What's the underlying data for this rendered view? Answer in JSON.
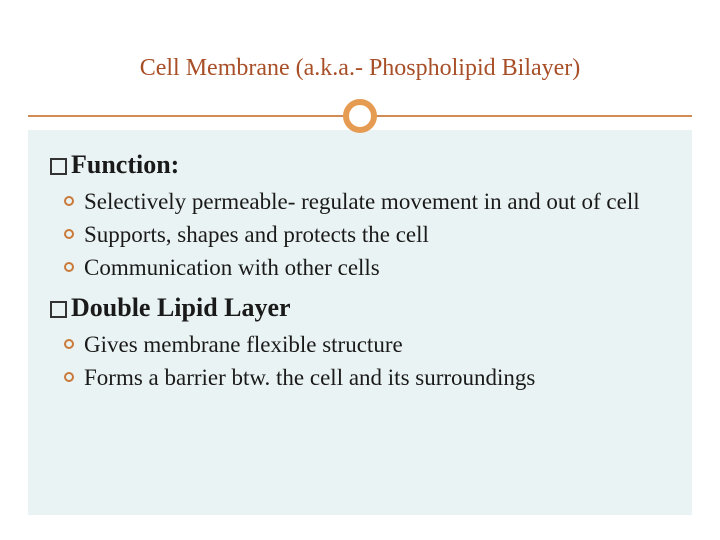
{
  "slide": {
    "title": "Cell Membrane (a.k.a.- Phospholipid Bilayer)",
    "title_color": "#a84f28",
    "title_fontsize": 24,
    "accent_line_color": "#d08c54",
    "accent_circle_color": "#e69b52",
    "content_bg_color": "#eaf3f3",
    "body_fontsize": 23,
    "body_color": "#1a1a1a",
    "bullet_ring_color": "#c97a3a",
    "sections": [
      {
        "heading": "Function:",
        "items": [
          "Selectively permeable- regulate movement in and out of cell",
          "Supports, shapes and protects the cell",
          "Communication with other cells"
        ]
      },
      {
        "heading": "Double Lipid Layer",
        "items": [
          "Gives membrane flexible structure",
          "Forms a barrier btw. the cell and its surroundings"
        ]
      }
    ]
  }
}
